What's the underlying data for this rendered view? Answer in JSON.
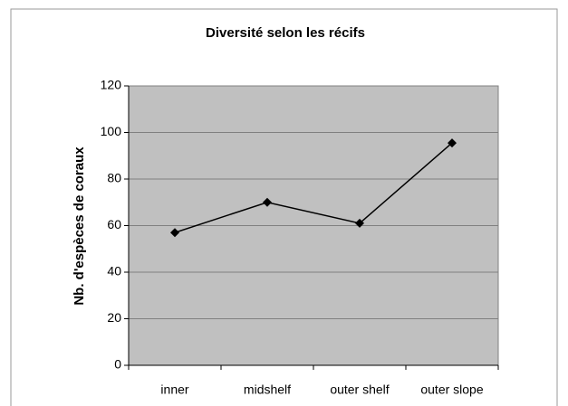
{
  "chart_data": {
    "type": "line",
    "title": "Diversité selon les récifs",
    "y_label": "Nb. d'espèces de coraux",
    "categories": [
      "inner",
      "midshelf",
      "outer shelf",
      "outer slope"
    ],
    "values": [
      57,
      70,
      61,
      95.5
    ],
    "color": "#000000",
    "ylim": [
      0,
      120
    ],
    "yticks": [
      0,
      20,
      40,
      60,
      80,
      100,
      120
    ],
    "grid": true
  }
}
